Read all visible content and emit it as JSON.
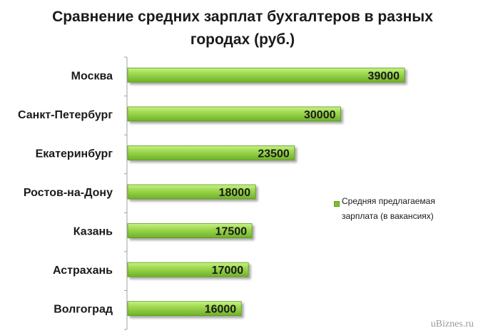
{
  "chart_data": {
    "type": "bar",
    "orientation": "horizontal",
    "title": "Сравнение средних зарплат бухгалтеров в разных\nгородах (руб.)",
    "categories": [
      "Москва",
      "Санкт-Петербург",
      "Екатеринбург",
      "Ростов-на-Дону",
      "Казань",
      "Астрахань",
      "Волгоград"
    ],
    "series": [
      {
        "name": "Средняя предлагаемая зарплата (в вакансиях)",
        "values": [
          39000,
          30000,
          23500,
          18000,
          17500,
          17000,
          16000
        ],
        "color": "#7ec230"
      }
    ],
    "xlim": [
      0,
      40000
    ],
    "grid": false,
    "legend_position": "right",
    "data_labels": true
  },
  "legend": {
    "label": "Средняя предлагаемая\nзарплата  (в вакансиях)"
  },
  "watermark": "uBiznes.ru"
}
